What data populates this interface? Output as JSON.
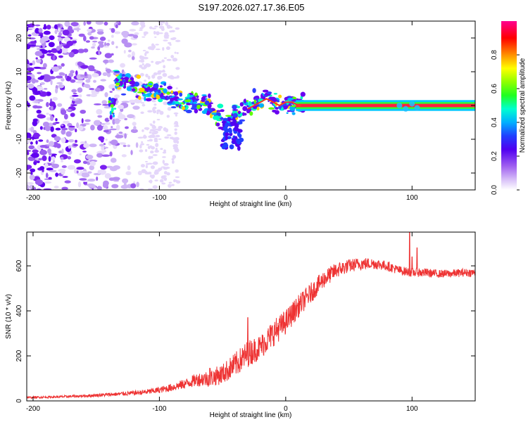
{
  "title": "S197.2026.027.17.36.E05",
  "colors": {
    "snr_line": "#ee3333",
    "colormap": [
      "#ffffff",
      "#d8c0f8",
      "#a060f0",
      "#6a00f0",
      "#2020ff",
      "#00b0ff",
      "#00ffc0",
      "#40ff00",
      "#c0ff00",
      "#ffff00",
      "#ff8000",
      "#ff0000",
      "#ff0080"
    ]
  },
  "chart_data": [
    {
      "type": "heatmap",
      "title": "S197.2026.027.17.36.E05",
      "xlabel": "Height of straight line (km)",
      "ylabel": "Frequency (Hz)",
      "xlim": [
        -205,
        150
      ],
      "ylim": [
        -25,
        25
      ],
      "xticks": [
        -200,
        -100,
        0,
        100
      ],
      "yticks": [
        -20,
        -10,
        0,
        10,
        20
      ],
      "colorbar": {
        "label": "Normalized spectral amplitude",
        "range": [
          0.0,
          1.0
        ],
        "ticks": [
          "0.0",
          "0.2",
          "0.4",
          "0.6",
          "0.8"
        ]
      },
      "ridge": {
        "description": "frequency of dominant spectral line vs height",
        "x": [
          -135,
          -125,
          -115,
          -105,
          -95,
          -85,
          -75,
          -65,
          -58,
          -52,
          -47,
          -43,
          -40,
          -35,
          -30,
          -25,
          -20,
          -15,
          -10,
          -5,
          0,
          5,
          10,
          20,
          40,
          60,
          80,
          85,
          90,
          95,
          100,
          105,
          110,
          120,
          150
        ],
        "y": [
          8,
          6,
          5,
          4,
          3,
          2,
          1,
          1,
          -2,
          -3,
          -5,
          -4,
          -2,
          -2,
          -1,
          0,
          1,
          2,
          1,
          0,
          1,
          1,
          0,
          0,
          0,
          0,
          0,
          0,
          0,
          -0.5,
          0,
          -0.5,
          0,
          0,
          0
        ]
      }
    },
    {
      "type": "line",
      "xlabel": "Height of straight line (km)",
      "ylabel": "SNR (10 * v/v)",
      "xlim": [
        -205,
        150
      ],
      "ylim": [
        0,
        750
      ],
      "xticks": [
        -200,
        -100,
        0,
        100
      ],
      "yticks": [
        0,
        200,
        400,
        600
      ],
      "series": [
        {
          "name": "SNR",
          "trend_x": [
            -205,
            -180,
            -160,
            -140,
            -120,
            -110,
            -100,
            -90,
            -80,
            -70,
            -60,
            -50,
            -40,
            -30,
            -20,
            -10,
            0,
            10,
            20,
            30,
            40,
            50,
            60,
            70,
            80,
            90,
            100,
            110,
            120,
            130,
            140,
            150
          ],
          "trend_y": [
            15,
            18,
            22,
            28,
            35,
            40,
            48,
            60,
            75,
            95,
            100,
            120,
            160,
            210,
            240,
            300,
            350,
            420,
            480,
            540,
            580,
            600,
            610,
            610,
            600,
            580,
            570,
            570,
            565,
            565,
            570,
            570
          ],
          "noise_y": [
            4,
            5,
            6,
            8,
            10,
            12,
            14,
            18,
            22,
            30,
            38,
            45,
            55,
            60,
            55,
            60,
            55,
            50,
            45,
            40,
            35,
            30,
            28,
            25,
            22,
            20,
            20,
            20,
            18,
            18,
            18,
            18
          ]
        }
      ],
      "spikes": [
        {
          "x": -30,
          "y": 370
        },
        {
          "x": -60,
          "y": 145
        },
        {
          "x": 98,
          "y": 760
        },
        {
          "x": 100,
          "y": 640
        },
        {
          "x": 104,
          "y": 680
        }
      ]
    }
  ]
}
